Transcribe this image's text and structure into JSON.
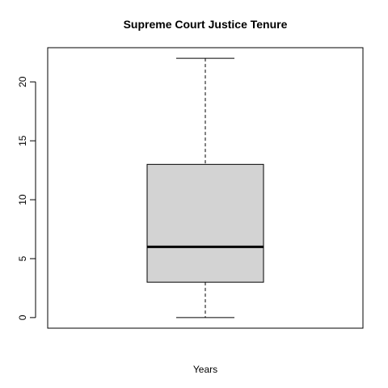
{
  "chart_data": {
    "type": "boxplot",
    "title": "Supreme Court Justice Tenure",
    "xlabel": "Years",
    "ylabel": "",
    "ylim": [
      -0.9,
      22.9
    ],
    "yticks": [
      0,
      5,
      10,
      15,
      20
    ],
    "grid": false,
    "box": {
      "min": 0,
      "q1": 3,
      "median": 6,
      "q3": 13,
      "max": 22
    },
    "colors": {
      "box_fill": "#d3d3d3",
      "stroke": "#000000"
    }
  }
}
